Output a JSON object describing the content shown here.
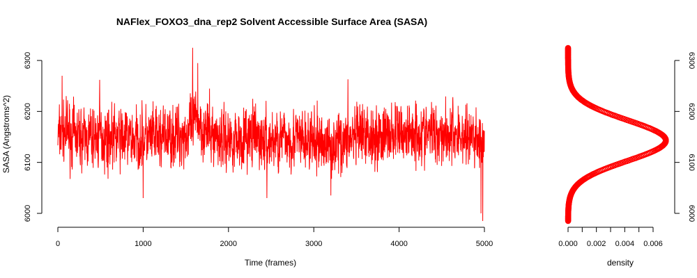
{
  "chart_data": [
    {
      "type": "line",
      "title": "NAFlex_FOXO3_dna_rep2 Solvent Accessible Surface Area (SASA)",
      "xlabel": "Time (frames)",
      "ylabel": "SASA (Angstroms^2)",
      "xlim": [
        0,
        5000
      ],
      "ylim": [
        6000,
        6300
      ],
      "x_ticks": [
        "0",
        "1000",
        "2000",
        "3000",
        "4000",
        "5000"
      ],
      "y_ticks": [
        "6000",
        "6100",
        "6200",
        "6300"
      ],
      "color": "#ff0000",
      "grid": false,
      "series": [
        {
          "name": "",
          "x": [
            0,
            50,
            100,
            200,
            300,
            400,
            500,
            600,
            700,
            800,
            900,
            1000,
            1100,
            1200,
            1300,
            1400,
            1500,
            1550,
            1600,
            1650,
            1700,
            1800,
            1900,
            2000,
            2100,
            2200,
            2300,
            2400,
            2500,
            2600,
            2700,
            2800,
            2900,
            3000,
            3100,
            3200,
            3300,
            3400,
            3500,
            3600,
            3700,
            3800,
            3900,
            4000,
            4100,
            4200,
            4300,
            4400,
            4500,
            4600,
            4700,
            4800,
            4900,
            4960,
            5000
          ],
          "mean": [
            6150,
            6155,
            6160,
            6150,
            6148,
            6147,
            6150,
            6148,
            6150,
            6147,
            6145,
            6148,
            6145,
            6148,
            6150,
            6152,
            6155,
            6160,
            6180,
            6185,
            6165,
            6155,
            6150,
            6145,
            6147,
            6148,
            6150,
            6142,
            6140,
            6145,
            6147,
            6145,
            6140,
            6138,
            6140,
            6135,
            6140,
            6145,
            6148,
            6150,
            6155,
            6152,
            6155,
            6157,
            6158,
            6160,
            6155,
            6158,
            6160,
            6155,
            6152,
            6150,
            6148,
            6145,
            6120
          ],
          "spread": 42,
          "extremes": [
            [
              1580,
              6325
            ],
            [
              1640,
              6295
            ],
            [
              50,
              6270
            ],
            [
              4960,
              6000
            ],
            [
              4980,
              5985
            ],
            [
              1000,
              6030
            ],
            [
              2450,
              6030
            ],
            [
              3200,
              6035
            ],
            [
              490,
              6262
            ],
            [
              3400,
              6263
            ]
          ]
        }
      ]
    },
    {
      "type": "line",
      "title": "",
      "xlabel": "density",
      "ylabel": "",
      "xlim": [
        0,
        0.0069
      ],
      "ylim": [
        6000,
        6300
      ],
      "x_ticks": [
        "0.000",
        "0.002",
        "0.004",
        "0.006"
      ],
      "y_ticks": [
        "6000",
        "6100",
        "6200",
        "6300"
      ],
      "color": "#ff0000",
      "series": [
        {
          "name": "",
          "mean": 6143,
          "sd": 40,
          "peak": 0.0069,
          "y_range": [
            5985,
            6325
          ]
        }
      ]
    }
  ]
}
